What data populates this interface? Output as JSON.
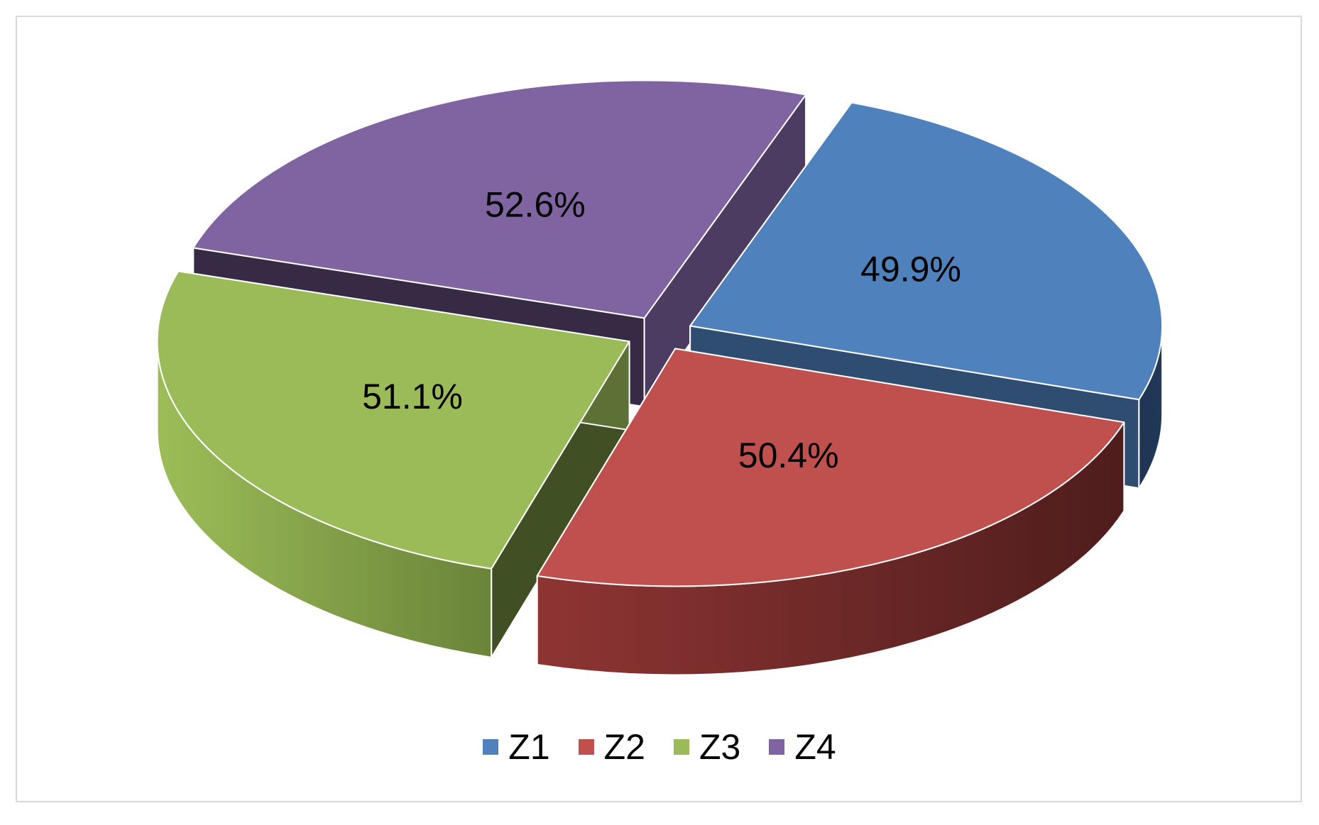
{
  "chart_data": {
    "type": "pie",
    "style": "3d-exploded",
    "categories": [
      "Z1",
      "Z2",
      "Z3",
      "Z4"
    ],
    "values": [
      49.9,
      50.4,
      51.1,
      52.6
    ],
    "labels": [
      "49.9%",
      "50.4%",
      "51.1%",
      "52.6%"
    ],
    "colors": [
      "#4f81bd",
      "#c0504d",
      "#9bbb59",
      "#8064a2"
    ],
    "title": "",
    "legend": "bottom"
  }
}
